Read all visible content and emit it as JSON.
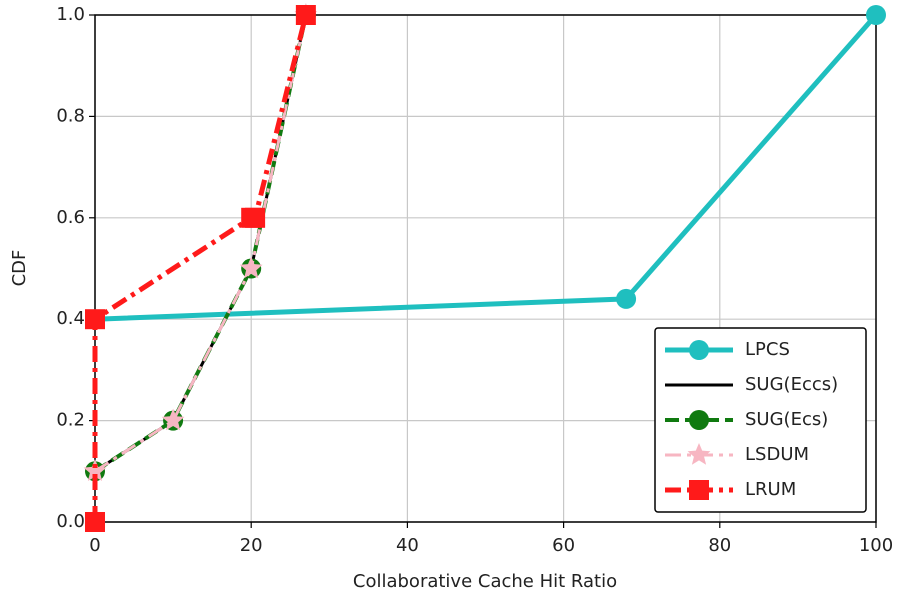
{
  "chart_data": {
    "type": "line",
    "xlabel": "Collaborative Cache Hit Ratio",
    "ylabel": "CDF",
    "xlim": [
      0,
      100
    ],
    "ylim": [
      0,
      1.0
    ],
    "xticks": [
      0,
      20,
      40,
      60,
      80,
      100
    ],
    "yticks": [
      {
        "value": 0,
        "label": "0.0"
      },
      0.2,
      0.4,
      0.6,
      0.8,
      {
        "value": 1.0,
        "label": "1.0"
      }
    ],
    "grid": true,
    "legend": "lower right",
    "series": [
      {
        "name": "LPCS",
        "color": "#1fbfbf",
        "linestyle": "solid",
        "marker": "circle",
        "x": [
          0,
          68,
          100
        ],
        "values": [
          0.4,
          0.44,
          1.0
        ]
      },
      {
        "name": "SUG(Eccs)",
        "color": "#000000",
        "linestyle": "solid",
        "marker": "none",
        "x": [
          0,
          10,
          20,
          27
        ],
        "values": [
          0.1,
          0.2,
          0.5,
          1.0
        ]
      },
      {
        "name": "SUG(Ecs)",
        "color": "#107a10",
        "linestyle": "dashed",
        "marker": "circle",
        "x": [
          0,
          10,
          20,
          27
        ],
        "values": [
          0.1,
          0.2,
          0.5,
          1.0
        ]
      },
      {
        "name": "LSDUM",
        "color": "#f7b6c2",
        "linestyle": "dashdot",
        "marker": "star",
        "x": [
          0,
          10,
          20,
          27
        ],
        "values": [
          0.1,
          0.2,
          0.5,
          1.0
        ]
      },
      {
        "name": "LRUM",
        "color": "#ff1a1a",
        "linestyle": "dashdot",
        "marker": "square",
        "x": [
          0,
          0,
          20,
          20.5,
          27
        ],
        "values": [
          0,
          0.4,
          0.6,
          0.6,
          1.0
        ]
      }
    ]
  }
}
